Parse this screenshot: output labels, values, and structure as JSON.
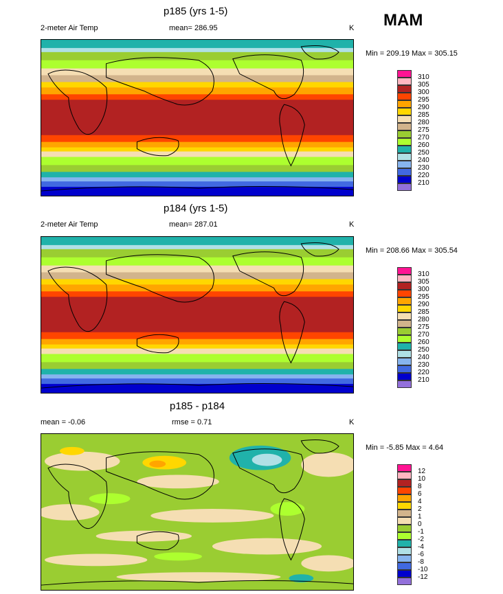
{
  "season": "MAM",
  "panels": [
    {
      "title": "p185 (yrs 1-5)",
      "left_label": "2-meter Air Temp",
      "center_label": "mean= 286.95",
      "units": "K",
      "stats": "Min = 209.19 Max = 305.15"
    },
    {
      "title": "p184 (yrs 1-5)",
      "left_label": "2-meter Air Temp",
      "center_label": "mean= 287.01",
      "units": "K",
      "stats": "Min = 208.66 Max = 305.54"
    },
    {
      "title": "p185 - p184",
      "left_label": "mean =  -0.06",
      "center_label": "rmse =   0.71",
      "units": "K",
      "stats": "Min =  -5.85 Max =   4.64"
    }
  ],
  "legend_abs": {
    "labels": [
      "310",
      "305",
      "300",
      "295",
      "290",
      "285",
      "280",
      "275",
      "270",
      "260",
      "250",
      "240",
      "230",
      "220",
      "210"
    ],
    "colors": [
      "#ff1493",
      "#ffb6c1",
      "#b22222",
      "#ff4500",
      "#ffa500",
      "#ffd700",
      "#f5deb3",
      "#d2b48c",
      "#9acd32",
      "#adff2f",
      "#20b2aa",
      "#b0e0e6",
      "#87b4ee",
      "#4169e1",
      "#0000cd",
      "#9370db"
    ]
  },
  "legend_diff": {
    "labels": [
      "12",
      "10",
      "8",
      "6",
      "4",
      "2",
      "1",
      "0",
      "-1",
      "-2",
      "-4",
      "-6",
      "-8",
      "-10",
      "-12"
    ],
    "colors": [
      "#ff1493",
      "#ffb6c1",
      "#b22222",
      "#ff4500",
      "#ffa500",
      "#ffd700",
      "#d2b48c",
      "#f5deb3",
      "#9acd32",
      "#adff2f",
      "#20b2aa",
      "#b0e0e6",
      "#87b4ee",
      "#4169e1",
      "#0000cd",
      "#9370db"
    ]
  },
  "chart_data": [
    {
      "type": "heatmap",
      "title": "p185 (yrs 1-5)",
      "variable": "2-meter Air Temp",
      "units": "K",
      "mean": 286.95,
      "min": 209.19,
      "max": 305.15,
      "levels": [
        210,
        220,
        230,
        240,
        250,
        260,
        270,
        275,
        280,
        285,
        290,
        295,
        300,
        305,
        310
      ],
      "zonal_bands": [
        {
          "lat": 80,
          "value": 255
        },
        {
          "lat": 60,
          "value": 270
        },
        {
          "lat": 45,
          "value": 280
        },
        {
          "lat": 30,
          "value": 292
        },
        {
          "lat": 10,
          "value": 300
        },
        {
          "lat": -10,
          "value": 300
        },
        {
          "lat": -30,
          "value": 292
        },
        {
          "lat": -45,
          "value": 282
        },
        {
          "lat": -60,
          "value": 270
        },
        {
          "lat": -75,
          "value": 240
        },
        {
          "lat": -85,
          "value": 215
        }
      ]
    },
    {
      "type": "heatmap",
      "title": "p184 (yrs 1-5)",
      "variable": "2-meter Air Temp",
      "units": "K",
      "mean": 287.01,
      "min": 208.66,
      "max": 305.54,
      "levels": [
        210,
        220,
        230,
        240,
        250,
        260,
        270,
        275,
        280,
        285,
        290,
        295,
        300,
        305,
        310
      ],
      "zonal_bands": [
        {
          "lat": 80,
          "value": 255
        },
        {
          "lat": 60,
          "value": 270
        },
        {
          "lat": 45,
          "value": 280
        },
        {
          "lat": 30,
          "value": 292
        },
        {
          "lat": 10,
          "value": 300
        },
        {
          "lat": -10,
          "value": 300
        },
        {
          "lat": -30,
          "value": 292
        },
        {
          "lat": -45,
          "value": 282
        },
        {
          "lat": -60,
          "value": 270
        },
        {
          "lat": -75,
          "value": 240
        },
        {
          "lat": -85,
          "value": 215
        }
      ]
    },
    {
      "type": "heatmap",
      "title": "p185 - p184",
      "units": "K",
      "mean": -0.06,
      "rmse": 0.71,
      "min": -5.85,
      "max": 4.64,
      "levels": [
        -12,
        -10,
        -8,
        -6,
        -4,
        -2,
        -1,
        0,
        1,
        2,
        4,
        6,
        8,
        10,
        12
      ]
    }
  ]
}
